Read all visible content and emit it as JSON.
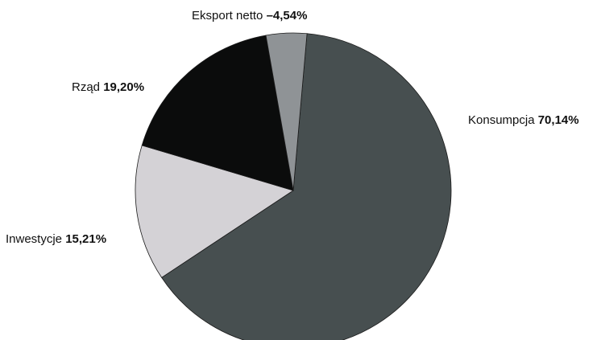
{
  "chart_data": {
    "type": "pie",
    "title": "",
    "slices": [
      {
        "name": "Konsumpcja",
        "value_label": "70,14%",
        "value": 70.14,
        "color": "#474f50"
      },
      {
        "name": "Inwestycje",
        "value_label": "15,21%",
        "value": 15.21,
        "color": "#d4d2d6"
      },
      {
        "name": "Rząd",
        "value_label": "19,20%",
        "value": 19.2,
        "color": "#0b0c0c"
      },
      {
        "name": "Eksport netto",
        "value_label": "–4,54%",
        "value": 4.54,
        "color": "#8f9396"
      }
    ],
    "legend": "none"
  }
}
